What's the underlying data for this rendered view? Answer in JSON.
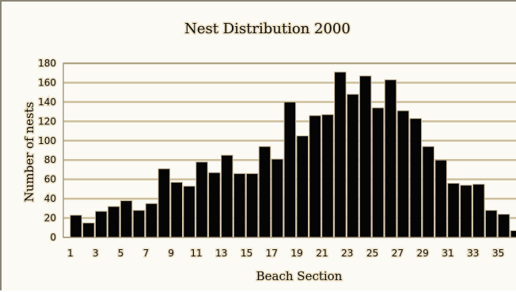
{
  "chart_data": {
    "type": "bar",
    "title": "Nest Distribution 2000",
    "xlabel": "Beach Section",
    "ylabel": "Number of nests",
    "ylim": [
      0,
      180
    ],
    "yticks": [
      0,
      20,
      40,
      60,
      80,
      100,
      120,
      140,
      160,
      180
    ],
    "grid": true,
    "legend": "none",
    "categories": [
      "1",
      "2",
      "3",
      "4",
      "5",
      "6",
      "7",
      "8",
      "9",
      "10",
      "11",
      "12",
      "13",
      "14",
      "15",
      "16",
      "17",
      "18",
      "19",
      "20",
      "21",
      "22",
      "23",
      "24",
      "25",
      "26",
      "27",
      "28",
      "29",
      "30",
      "31",
      "32",
      "33",
      "34",
      "35",
      "36"
    ],
    "xtick_labels": [
      "1",
      "3",
      "5",
      "7",
      "9",
      "11",
      "13",
      "15",
      "17",
      "19",
      "21",
      "23",
      "25",
      "27",
      "29",
      "31",
      "33",
      "35"
    ],
    "values": [
      23,
      15,
      27,
      32,
      38,
      28,
      35,
      71,
      57,
      53,
      78,
      67,
      85,
      66,
      66,
      94,
      81,
      140,
      105,
      126,
      127,
      171,
      148,
      167,
      134,
      163,
      131,
      123,
      94,
      80,
      56,
      54,
      55,
      28,
      24,
      7
    ],
    "colors": {
      "bar_fill": "#050505",
      "bar_outline": "#c9b99a",
      "grid_line": "#cdbf9c",
      "plot_border": "#a79b80"
    }
  }
}
